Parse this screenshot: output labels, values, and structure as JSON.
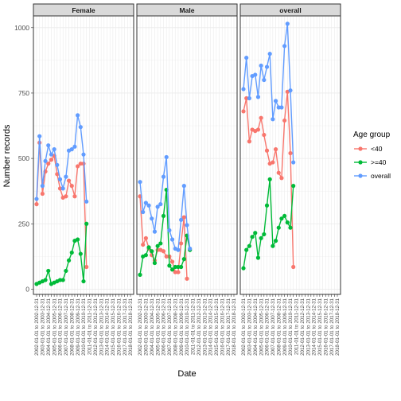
{
  "chart_data": {
    "type": "line",
    "xlabel": "Date",
    "ylabel": "Number records",
    "ylim": [
      -20,
      1045
    ],
    "yticks": [
      0,
      250,
      500,
      750,
      1000
    ],
    "yticklabels": [
      "0",
      "250",
      "500",
      "750",
      "1000"
    ],
    "legend": {
      "title": "Age group",
      "placement": "right",
      "entries": [
        "<40",
        ">=40",
        "overall"
      ]
    },
    "colors": {
      "<40": "#F8766D",
      ">=40": "#00BA38",
      "overall": "#619CFF"
    },
    "x": [
      "2002-01-01 to 2002-12-31",
      "2003-01-01 to 2003-12-31",
      "2003-07-01 to 2004-06-30",
      "2004-01-01 to 2004-12-31",
      "2004-07-01 to 2005-06-30",
      "2005-01-01 to 2005-12-31",
      "2005-07-01 to 2006-06-30",
      "2006-01-01 to 2006-12-31",
      "2006-07-01 to 2007-06-30",
      "2007-01-01 to 2007-12-31",
      "2007-07-01 to 2008-06-30",
      "2008-01-01 to 2008-12-31",
      "2008-07-01 to 2009-06-30",
      "2009-01-01 to 2009-12-31",
      "2009-07-01 to 2010-06-30",
      "2010-01-01 to 2010-12-31",
      "2010-07-01 to 2011-06-30",
      "2011-01-01 to 2011-12-31",
      "2011-07-01 to 2012-06-30",
      "2012-01-01 to 2012-12-31",
      "2012-07-01 to 2013-06-30",
      "2013-01-01 to 2013-12-31",
      "2013-07-01 to 2014-06-30",
      "2014-01-01 to 2014-12-31",
      "2014-07-01 to 2015-06-30",
      "2015-01-01 to 2015-12-31",
      "2015-07-01 to 2016-06-30",
      "2016-01-01 to 2016-12-31",
      "2016-07-01 to 2017-06-30",
      "2017-01-01 to 2017-12-31",
      "2017-07-01 to 2018-06-30",
      "2018-01-01 to 2018-12-31",
      "2018-07-01 to 2019-06-30"
    ],
    "xticklabels": [
      "2002-01-01 to 2002-12-31",
      "2003-01-01 to 2003-12-31",
      "2004-01-01 to 2004-12-31",
      "2005-01-01 to 2005-12-31",
      "2006-01-01 to 2006-12-31",
      "2007-01-01 to 2007-12-31",
      "2008-01-01 to 2008-12-31",
      "2009-01-01 to 2009-12-31",
      "2010-01-01 to 2010-12-31",
      "2011-01-01 to 2011-12-31",
      "2012-01-01 to 2012-12-31",
      "2013-01-01 to 2013-12-31",
      "2014-01-01 to 2014-12-31",
      "2015-01-01 to 2015-12-31",
      "2016-01-01 to 2016-12-31",
      "2017-01-01 to 2017-12-31",
      "2018-01-01 to 2018-12-31"
    ],
    "facets": [
      {
        "title": "Female",
        "series": [
          {
            "name": "<40",
            "values": [
              325,
              560,
              365,
              450,
              480,
              495,
              510,
              440,
              385,
              350,
              355,
              415,
              395,
              355,
              470,
              480,
              480,
              85,
              null,
              null,
              null,
              null,
              null,
              null,
              null,
              null,
              null,
              null,
              null,
              null,
              null,
              null,
              null
            ]
          },
          {
            "name": ">=40",
            "values": [
              20,
              25,
              30,
              35,
              70,
              20,
              25,
              30,
              35,
              35,
              70,
              110,
              140,
              185,
              190,
              135,
              30,
              250,
              null,
              null,
              null,
              null,
              null,
              null,
              null,
              null,
              null,
              null,
              null,
              null,
              null,
              null,
              null
            ]
          },
          {
            "name": "overall",
            "values": [
              345,
              585,
              395,
              490,
              550,
              515,
              535,
              475,
              420,
              385,
              430,
              530,
              535,
              545,
              665,
              620,
              515,
              335,
              null,
              null,
              null,
              null,
              null,
              null,
              null,
              null,
              null,
              null,
              null,
              null,
              null,
              null,
              null
            ]
          }
        ]
      },
      {
        "title": "Male",
        "series": [
          {
            "name": "<40",
            "values": [
              355,
              170,
              195,
              155,
              130,
              110,
              150,
              150,
              145,
              125,
              125,
              105,
              65,
              65,
              175,
              275,
              40,
              null,
              null,
              null,
              null,
              null,
              null,
              null,
              null,
              null,
              null,
              null,
              null,
              null,
              null,
              null,
              null
            ]
          },
          {
            "name": ">=40",
            "values": [
              55,
              125,
              130,
              160,
              145,
              100,
              165,
              175,
              280,
              380,
              90,
              75,
              85,
              85,
              85,
              115,
              205,
              150,
              null,
              null,
              null,
              null,
              null,
              null,
              null,
              null,
              null,
              null,
              null,
              null,
              null,
              null,
              null
            ]
          },
          {
            "name": "overall",
            "values": [
              410,
              295,
              330,
              320,
              270,
              220,
              315,
              325,
              430,
              505,
              225,
              190,
              155,
              150,
              265,
              395,
              245,
              155,
              null,
              null,
              null,
              null,
              null,
              null,
              null,
              null,
              null,
              null,
              null,
              null,
              null,
              null,
              null
            ]
          }
        ]
      },
      {
        "title": "overall",
        "series": [
          {
            "name": "<40",
            "values": [
              680,
              730,
              565,
              610,
              605,
              610,
              655,
              590,
              530,
              480,
              485,
              535,
              445,
              425,
              645,
              755,
              520,
              85,
              null,
              null,
              null,
              null,
              null,
              null,
              null,
              null,
              null,
              null,
              null,
              null,
              null,
              null,
              null
            ]
          },
          {
            "name": ">=40",
            "values": [
              80,
              150,
              165,
              200,
              215,
              120,
              195,
              210,
              320,
              420,
              165,
              185,
              235,
              270,
              280,
              255,
              235,
              395,
              null,
              null,
              null,
              null,
              null,
              null,
              null,
              null,
              null,
              null,
              null,
              null,
              null,
              null,
              null
            ]
          },
          {
            "name": "overall",
            "values": [
              765,
              885,
              730,
              815,
              820,
              735,
              855,
              800,
              850,
              900,
              650,
              720,
              695,
              695,
              930,
              1015,
              760,
              485,
              null,
              null,
              null,
              null,
              null,
              null,
              null,
              null,
              null,
              null,
              null,
              null,
              null,
              null,
              null
            ]
          }
        ]
      }
    ]
  }
}
